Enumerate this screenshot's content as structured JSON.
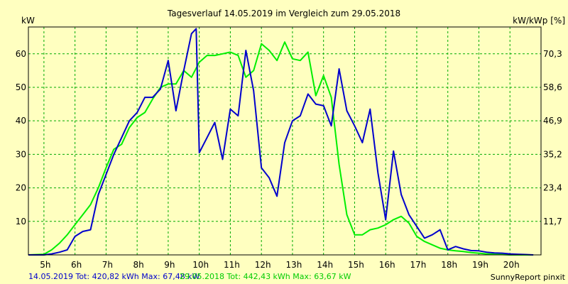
{
  "chart_data": {
    "type": "line",
    "title": "Tagesverlauf 14.05.2019 im Vergleich zum 29.05.2018",
    "ylabel_left": "kW",
    "ylabel_right": "kW/kWp [%]",
    "xlim": [
      4.5,
      21.0
    ],
    "ylim": [
      0,
      68
    ],
    "y_ticks": [
      10,
      20,
      30,
      40,
      50,
      60
    ],
    "y_right_ticks": [
      "11,7",
      "23,4",
      "35,2",
      "46,9",
      "58,6",
      "70,3"
    ],
    "x_ticks": [
      "5h",
      "6h",
      "7h",
      "8h",
      "9h",
      "10h",
      "11h",
      "12h",
      "13h",
      "14h",
      "15h",
      "16h",
      "17h",
      "18h",
      "19h",
      "20h"
    ],
    "grid": true,
    "series": [
      {
        "name": "14.05.2019",
        "color": "#0000cc",
        "x": [
          4.5,
          5.0,
          5.25,
          5.5,
          5.75,
          6.0,
          6.25,
          6.5,
          6.75,
          7.0,
          7.25,
          7.5,
          7.75,
          8.0,
          8.25,
          8.5,
          8.75,
          9.0,
          9.25,
          9.5,
          9.75,
          9.9,
          10.0,
          10.25,
          10.5,
          10.75,
          11.0,
          11.25,
          11.5,
          11.75,
          12.0,
          12.25,
          12.5,
          12.75,
          13.0,
          13.25,
          13.5,
          13.75,
          14.0,
          14.25,
          14.5,
          14.75,
          15.0,
          15.25,
          15.5,
          15.75,
          16.0,
          16.25,
          16.5,
          16.75,
          17.0,
          17.25,
          17.5,
          17.75,
          18.0,
          18.25,
          18.5,
          18.75,
          19.0,
          19.25,
          19.5,
          19.75,
          20.0,
          20.25,
          20.5,
          20.75
        ],
        "y": [
          0,
          0,
          0.3,
          0.8,
          1.5,
          5.5,
          7.0,
          7.5,
          18.0,
          24.0,
          30.0,
          35.0,
          40.0,
          42.5,
          47.0,
          47.0,
          49.5,
          58.0,
          43.0,
          55.0,
          66.0,
          67.5,
          30.5,
          35.0,
          39.5,
          28.5,
          43.5,
          41.5,
          61.0,
          49.0,
          26.0,
          23.0,
          17.5,
          33.5,
          40.0,
          41.5,
          48.0,
          45.0,
          44.5,
          38.5,
          55.5,
          43.0,
          38.5,
          33.5,
          43.5,
          24.5,
          10.5,
          31.0,
          18.0,
          12.0,
          8.5,
          5.0,
          6.0,
          7.5,
          1.5,
          2.5,
          1.8,
          1.3,
          1.2,
          0.8,
          0.6,
          0.5,
          0.3,
          0.2,
          0.1,
          0
        ]
      },
      {
        "name": "29.05.2018",
        "color": "#00ee00",
        "x": [
          4.5,
          5.0,
          5.25,
          5.5,
          5.75,
          6.0,
          6.25,
          6.5,
          6.75,
          7.0,
          7.25,
          7.5,
          7.75,
          8.0,
          8.25,
          8.5,
          8.75,
          9.0,
          9.25,
          9.5,
          9.75,
          10.0,
          10.25,
          10.5,
          10.75,
          11.0,
          11.25,
          11.5,
          11.75,
          12.0,
          12.25,
          12.5,
          12.75,
          13.0,
          13.25,
          13.5,
          13.75,
          14.0,
          14.25,
          14.5,
          14.75,
          15.0,
          15.25,
          15.5,
          15.75,
          16.0,
          16.25,
          16.5,
          16.75,
          17.0,
          17.25,
          17.5,
          17.75,
          18.0,
          18.25,
          18.5,
          18.75,
          19.0,
          19.25,
          19.5,
          19.75,
          20.0,
          20.25,
          20.5,
          20.75
        ],
        "y": [
          0,
          0.2,
          1.5,
          3.5,
          6.0,
          9.0,
          12.0,
          15.0,
          20.0,
          26.0,
          31.5,
          33.0,
          38.0,
          41.0,
          42.5,
          46.5,
          50.0,
          51.0,
          51.0,
          55.0,
          53.0,
          57.5,
          59.5,
          59.5,
          60.0,
          60.5,
          59.5,
          53.0,
          55.0,
          63.0,
          61.0,
          58.0,
          63.5,
          58.5,
          58.0,
          60.5,
          47.5,
          53.5,
          47.0,
          27.0,
          12.0,
          6.0,
          6.0,
          7.5,
          8.0,
          9.0,
          10.5,
          11.5,
          9.5,
          5.5,
          4.0,
          3.0,
          2.0,
          1.5,
          1.2,
          1.0,
          0.7,
          0.5,
          0.3,
          0.2,
          0.1,
          0,
          0,
          0,
          0
        ]
      }
    ],
    "footer": {
      "series1_text": "14.05.2019 Tot: 420,82 kWh Max: 67,48 kW",
      "series2_text": "29.05.2018 Tot: 442,43 kWh Max: 63,67 kW",
      "credit": "SunnyReport pinxit"
    }
  }
}
